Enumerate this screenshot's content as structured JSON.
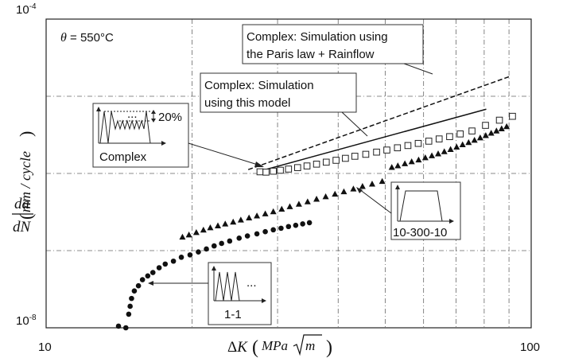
{
  "chart_data": {
    "type": "scatter",
    "x_scale": "log",
    "y_scale": "log",
    "xlim": [
      10,
      100
    ],
    "ylim": [
      1e-08,
      0.0001
    ],
    "grid": true,
    "x_tick_labels": [
      "10",
      "100"
    ],
    "y_tick_labels": {
      "top": {
        "base": "10",
        "exp": "-4"
      },
      "bottom": {
        "base": "10",
        "exp": "-8"
      }
    },
    "xlabel": {
      "delta": "Δ",
      "k": "K",
      "open": "(",
      "mpa": "MPa",
      "m": "m",
      "close": ")"
    },
    "ylabel": {
      "numerator": "da",
      "denominator": "dN",
      "open": "(",
      "unit": "mm / cycle",
      "close": ")"
    },
    "condition": {
      "theta": "θ",
      "text": " = 550°C"
    },
    "series": [
      {
        "marker": "circle",
        "points": [
          [
            14.1,
            1.05e-08
          ],
          [
            14.6,
            1e-08
          ],
          [
            14.8,
            1.5e-08
          ],
          [
            14.9,
            1.9e-08
          ],
          [
            15.0,
            2.4e-08
          ],
          [
            15.2,
            3e-08
          ],
          [
            15.5,
            3.5e-08
          ],
          [
            15.8,
            4.2e-08
          ],
          [
            16.2,
            4.7e-08
          ],
          [
            16.6,
            5.2e-08
          ],
          [
            17.1,
            6e-08
          ],
          [
            17.6,
            6.7e-08
          ],
          [
            18.3,
            7.3e-08
          ],
          [
            19.0,
            8.2e-08
          ],
          [
            19.8,
            8.8e-08
          ],
          [
            20.6,
            9.6e-08
          ],
          [
            21.4,
            1.05e-07
          ],
          [
            22.2,
            1.15e-07
          ],
          [
            23.0,
            1.24e-07
          ],
          [
            23.9,
            1.33e-07
          ],
          [
            25.0,
            1.45e-07
          ],
          [
            26.0,
            1.55e-07
          ],
          [
            27.2,
            1.65e-07
          ],
          [
            28.3,
            1.76e-07
          ],
          [
            29.4,
            1.86e-07
          ],
          [
            30.5,
            1.95e-07
          ],
          [
            31.6,
            2.05e-07
          ],
          [
            32.7,
            2.13e-07
          ],
          [
            33.8,
            2.22e-07
          ],
          [
            34.9,
            2.3e-07
          ]
        ]
      },
      {
        "marker": "triangle",
        "points": [
          [
            19.1,
            1.5e-07
          ],
          [
            19.7,
            1.6e-07
          ],
          [
            20.4,
            1.72e-07
          ],
          [
            21.1,
            1.85e-07
          ],
          [
            21.8,
            1.98e-07
          ],
          [
            22.6,
            2.1e-07
          ],
          [
            23.4,
            2.22e-07
          ],
          [
            24.3,
            2.35e-07
          ],
          [
            25.2,
            2.5e-07
          ],
          [
            26.2,
            2.66e-07
          ],
          [
            27.2,
            2.82e-07
          ],
          [
            28.3,
            3e-07
          ],
          [
            29.4,
            3.2e-07
          ],
          [
            30.6,
            3.45e-07
          ],
          [
            31.8,
            3.72e-07
          ],
          [
            33.2,
            4e-07
          ],
          [
            34.6,
            4.3e-07
          ],
          [
            36.1,
            4.65e-07
          ],
          [
            37.7,
            5e-07
          ],
          [
            39.4,
            5.4e-07
          ],
          [
            41.1,
            5.8e-07
          ],
          [
            43.0,
            6.3e-07
          ],
          [
            44.9,
            6.8e-07
          ],
          [
            47.0,
            7.3e-07
          ],
          [
            49.3,
            7.9e-07
          ],
          [
            51.6,
            1.2e-06
          ],
          [
            53.1,
            1.26e-06
          ],
          [
            54.9,
            1.34e-06
          ],
          [
            56.7,
            1.42e-06
          ],
          [
            58.6,
            1.5e-06
          ],
          [
            60.5,
            1.6e-06
          ],
          [
            62.4,
            1.7e-06
          ],
          [
            64.3,
            1.8e-06
          ],
          [
            66.2,
            1.92e-06
          ],
          [
            68.2,
            2.05e-06
          ],
          [
            70.2,
            2.2e-06
          ],
          [
            72.2,
            2.36e-06
          ],
          [
            74.3,
            2.52e-06
          ],
          [
            76.4,
            2.7e-06
          ],
          [
            78.5,
            2.9e-06
          ],
          [
            80.6,
            3.1e-06
          ],
          [
            82.7,
            3.33e-06
          ],
          [
            84.8,
            3.56e-06
          ],
          [
            86.9,
            3.8e-06
          ],
          [
            89.0,
            4.05e-06
          ]
        ]
      },
      {
        "marker": "square",
        "points": [
          [
            27.6,
            1.05e-06
          ],
          [
            28.4,
            1.04e-06
          ],
          [
            29.4,
            1.07e-06
          ],
          [
            30.4,
            1.1e-06
          ],
          [
            31.6,
            1.14e-06
          ],
          [
            33.0,
            1.19e-06
          ],
          [
            34.5,
            1.25e-06
          ],
          [
            36.1,
            1.32e-06
          ],
          [
            37.8,
            1.4e-06
          ],
          [
            39.6,
            1.48e-06
          ],
          [
            41.4,
            1.57e-06
          ],
          [
            43.3,
            1.67e-06
          ],
          [
            45.6,
            1.77e-06
          ],
          [
            48.0,
            1.89e-06
          ],
          [
            50.4,
            2.01e-06
          ],
          [
            53.0,
            2.15e-06
          ],
          [
            55.7,
            2.3e-06
          ],
          [
            58.5,
            2.45e-06
          ],
          [
            61.5,
            2.62e-06
          ],
          [
            64.6,
            2.8e-06
          ],
          [
            67.9,
            3e-06
          ],
          [
            71.4,
            3.25e-06
          ],
          [
            75.5,
            3.55e-06
          ],
          [
            80.5,
            4.2e-06
          ],
          [
            86.0,
            4.9e-06
          ],
          [
            91.5,
            5.5e-06
          ]
        ]
      }
    ],
    "lines": [
      {
        "style": "dashed",
        "points": [
          [
            26.1,
            1.12e-06
          ],
          [
            90.2,
            1.8e-05
          ]
        ]
      },
      {
        "style": "solid",
        "points": [
          [
            28.3,
            1.12e-06
          ],
          [
            80.8,
            6.8e-06
          ]
        ]
      }
    ],
    "annotations": [
      {
        "lines": [
          "Complex: Simulation using",
          "the Paris law + Rainflow"
        ]
      },
      {
        "lines": [
          "Complex: Simulation",
          "using this model"
        ]
      }
    ],
    "insets": [
      {
        "label": "Complex",
        "pct": "20%",
        "dots": "..."
      },
      {
        "label": "10-300-10"
      },
      {
        "label": "1-1",
        "dots": "..."
      }
    ]
  }
}
